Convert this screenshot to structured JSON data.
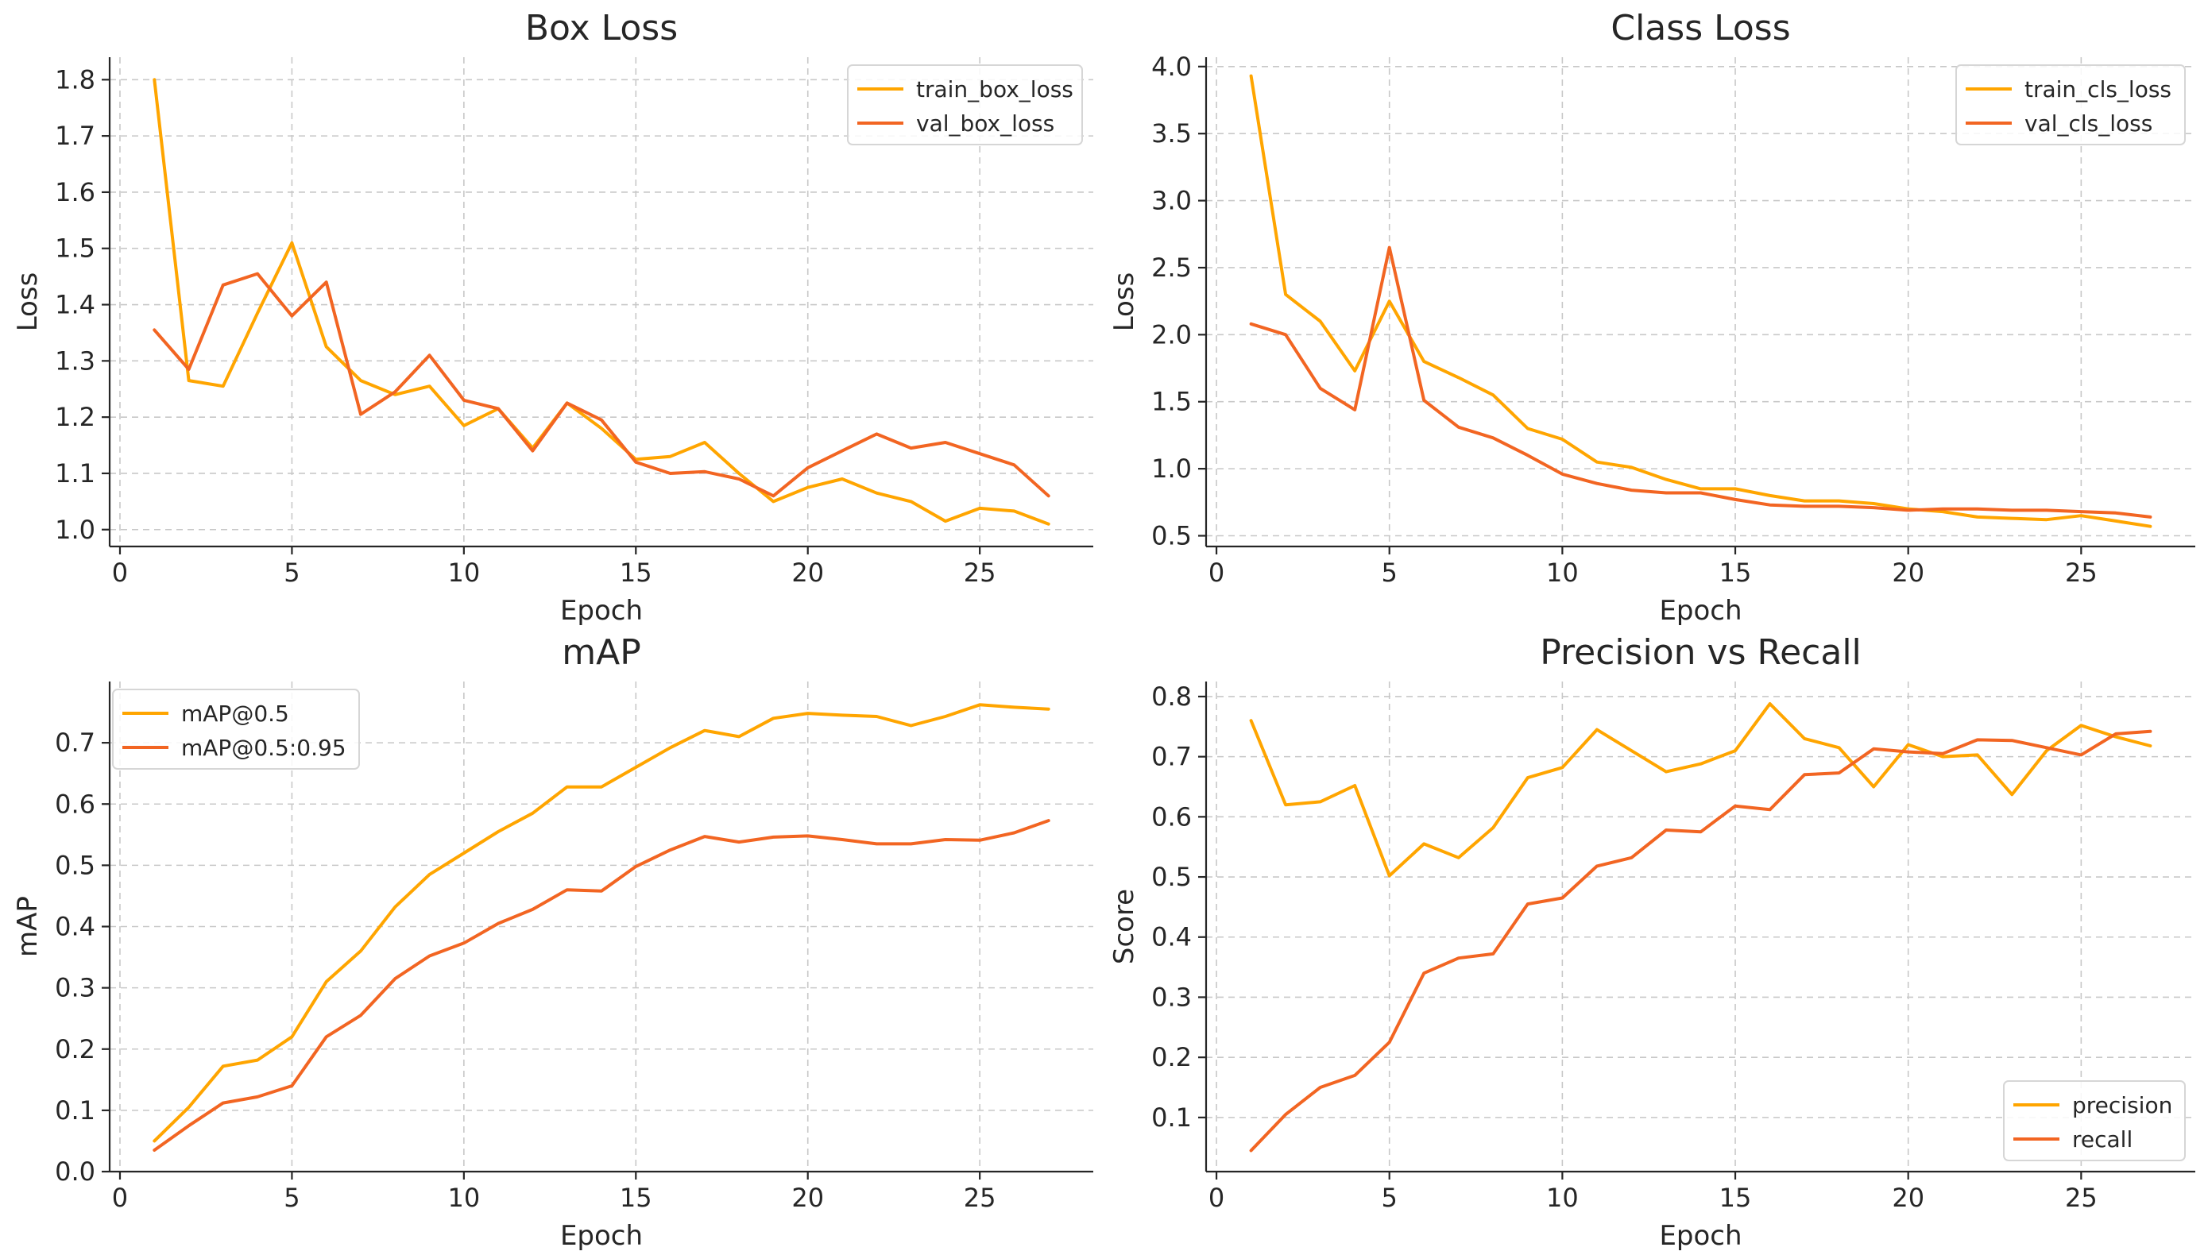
{
  "colors": {
    "series1": "#FFA500",
    "series2": "#F26522",
    "grid": "#c8c8c8",
    "text": "#262626"
  },
  "chart_data": [
    {
      "type": "line",
      "title": "Box Loss",
      "xlabel": "Epoch",
      "ylabel": "Loss",
      "xlim": [
        -0.3,
        28.3
      ],
      "ylim": [
        0.97,
        1.84
      ],
      "xticks": [
        0,
        5,
        10,
        15,
        20,
        25
      ],
      "yticks": [
        1.0,
        1.1,
        1.2,
        1.3,
        1.4,
        1.5,
        1.6,
        1.7,
        1.8
      ],
      "ytick_labels": [
        "1.0",
        "1.1",
        "1.2",
        "1.3",
        "1.4",
        "1.5",
        "1.6",
        "1.7",
        "1.8"
      ],
      "grid": true,
      "legend_position": "top-right",
      "x": [
        1,
        2,
        3,
        4,
        5,
        6,
        7,
        8,
        9,
        10,
        11,
        12,
        13,
        14,
        15,
        16,
        17,
        18,
        19,
        20,
        21,
        22,
        23,
        24,
        25,
        26,
        27
      ],
      "series": [
        {
          "name": "train_box_loss",
          "color": "#FFA500",
          "values": [
            1.8,
            1.265,
            1.255,
            1.385,
            1.51,
            1.325,
            1.265,
            1.24,
            1.255,
            1.185,
            1.215,
            1.145,
            1.225,
            1.18,
            1.125,
            1.13,
            1.155,
            1.1,
            1.05,
            1.075,
            1.09,
            1.065,
            1.05,
            1.015,
            1.038,
            1.033,
            1.01
          ]
        },
        {
          "name": "val_box_loss",
          "color": "#F26522",
          "values": [
            1.355,
            1.285,
            1.435,
            1.455,
            1.38,
            1.44,
            1.205,
            1.245,
            1.31,
            1.23,
            1.215,
            1.14,
            1.225,
            1.195,
            1.12,
            1.1,
            1.103,
            1.09,
            1.06,
            1.11,
            1.14,
            1.17,
            1.145,
            1.155,
            1.135,
            1.115,
            1.06
          ]
        }
      ]
    },
    {
      "type": "line",
      "title": "Class Loss",
      "xlabel": "Epoch",
      "ylabel": "Loss",
      "xlim": [
        -0.3,
        28.3
      ],
      "ylim": [
        0.42,
        4.07
      ],
      "xticks": [
        0,
        5,
        10,
        15,
        20,
        25
      ],
      "yticks": [
        0.5,
        1.0,
        1.5,
        2.0,
        2.5,
        3.0,
        3.5,
        4.0
      ],
      "ytick_labels": [
        "0.5",
        "1.0",
        "1.5",
        "2.0",
        "2.5",
        "3.0",
        "3.5",
        "4.0"
      ],
      "grid": true,
      "legend_position": "top-right",
      "x": [
        1,
        2,
        3,
        4,
        5,
        6,
        7,
        8,
        9,
        10,
        11,
        12,
        13,
        14,
        15,
        16,
        17,
        18,
        19,
        20,
        21,
        22,
        23,
        24,
        25,
        26,
        27
      ],
      "series": [
        {
          "name": "train_cls_loss",
          "color": "#FFA500",
          "values": [
            3.93,
            2.3,
            2.1,
            1.73,
            2.25,
            1.8,
            1.68,
            1.55,
            1.3,
            1.22,
            1.05,
            1.01,
            0.92,
            0.85,
            0.85,
            0.8,
            0.76,
            0.76,
            0.74,
            0.7,
            0.68,
            0.64,
            0.63,
            0.62,
            0.65,
            0.61,
            0.57
          ]
        },
        {
          "name": "val_cls_loss",
          "color": "#F26522",
          "values": [
            2.08,
            2.0,
            1.6,
            1.44,
            2.65,
            1.51,
            1.31,
            1.23,
            1.1,
            0.96,
            0.89,
            0.84,
            0.82,
            0.82,
            0.77,
            0.73,
            0.72,
            0.72,
            0.71,
            0.69,
            0.7,
            0.7,
            0.69,
            0.69,
            0.68,
            0.67,
            0.64
          ]
        }
      ]
    },
    {
      "type": "line",
      "title": "mAP",
      "xlabel": "Epoch",
      "ylabel": "mAP",
      "xlim": [
        -0.3,
        28.3
      ],
      "ylim": [
        0.0,
        0.8
      ],
      "xticks": [
        0,
        5,
        10,
        15,
        20,
        25
      ],
      "yticks": [
        0.0,
        0.1,
        0.2,
        0.3,
        0.4,
        0.5,
        0.6,
        0.7
      ],
      "ytick_labels": [
        "0.0",
        "0.1",
        "0.2",
        "0.3",
        "0.4",
        "0.5",
        "0.6",
        "0.7"
      ],
      "grid": true,
      "legend_position": "top-left",
      "x": [
        1,
        2,
        3,
        4,
        5,
        6,
        7,
        8,
        9,
        10,
        11,
        12,
        13,
        14,
        15,
        16,
        17,
        18,
        19,
        20,
        21,
        22,
        23,
        24,
        25,
        26,
        27
      ],
      "series": [
        {
          "name": "mAP@0.5",
          "color": "#FFA500",
          "values": [
            0.05,
            0.105,
            0.172,
            0.182,
            0.22,
            0.31,
            0.36,
            0.432,
            0.485,
            0.52,
            0.555,
            0.585,
            0.628,
            0.628,
            0.66,
            0.692,
            0.72,
            0.71,
            0.74,
            0.748,
            0.745,
            0.743,
            0.728,
            0.743,
            0.762,
            0.758,
            0.755
          ]
        },
        {
          "name": "mAP@0.5:0.95",
          "color": "#F26522",
          "values": [
            0.035,
            0.075,
            0.112,
            0.122,
            0.14,
            0.22,
            0.255,
            0.315,
            0.352,
            0.373,
            0.405,
            0.428,
            0.46,
            0.458,
            0.498,
            0.525,
            0.547,
            0.538,
            0.546,
            0.548,
            0.542,
            0.535,
            0.535,
            0.542,
            0.541,
            0.553,
            0.573
          ]
        }
      ]
    },
    {
      "type": "line",
      "title": "Precision vs Recall",
      "xlabel": "Epoch",
      "ylabel": "Score",
      "xlim": [
        -0.3,
        28.3
      ],
      "ylim": [
        0.01,
        0.825
      ],
      "xticks": [
        0,
        5,
        10,
        15,
        20,
        25
      ],
      "yticks": [
        0.1,
        0.2,
        0.3,
        0.4,
        0.5,
        0.6,
        0.7,
        0.8
      ],
      "ytick_labels": [
        "0.1",
        "0.2",
        "0.3",
        "0.4",
        "0.5",
        "0.6",
        "0.7",
        "0.8"
      ],
      "grid": true,
      "legend_position": "bottom-right",
      "x": [
        1,
        2,
        3,
        4,
        5,
        6,
        7,
        8,
        9,
        10,
        11,
        12,
        13,
        14,
        15,
        16,
        17,
        18,
        19,
        20,
        21,
        22,
        23,
        24,
        25,
        26,
        27
      ],
      "series": [
        {
          "name": "precision",
          "color": "#FFA500",
          "values": [
            0.76,
            0.62,
            0.625,
            0.652,
            0.502,
            0.555,
            0.532,
            0.582,
            0.665,
            0.682,
            0.745,
            0.71,
            0.675,
            0.688,
            0.71,
            0.788,
            0.73,
            0.715,
            0.65,
            0.72,
            0.7,
            0.703,
            0.637,
            0.71,
            0.752,
            0.733,
            0.718
          ]
        },
        {
          "name": "recall",
          "color": "#F26522",
          "values": [
            0.045,
            0.105,
            0.15,
            0.17,
            0.225,
            0.34,
            0.365,
            0.372,
            0.455,
            0.465,
            0.518,
            0.532,
            0.578,
            0.575,
            0.618,
            0.612,
            0.67,
            0.673,
            0.713,
            0.708,
            0.705,
            0.728,
            0.727,
            0.715,
            0.703,
            0.738,
            0.742
          ]
        }
      ]
    }
  ]
}
